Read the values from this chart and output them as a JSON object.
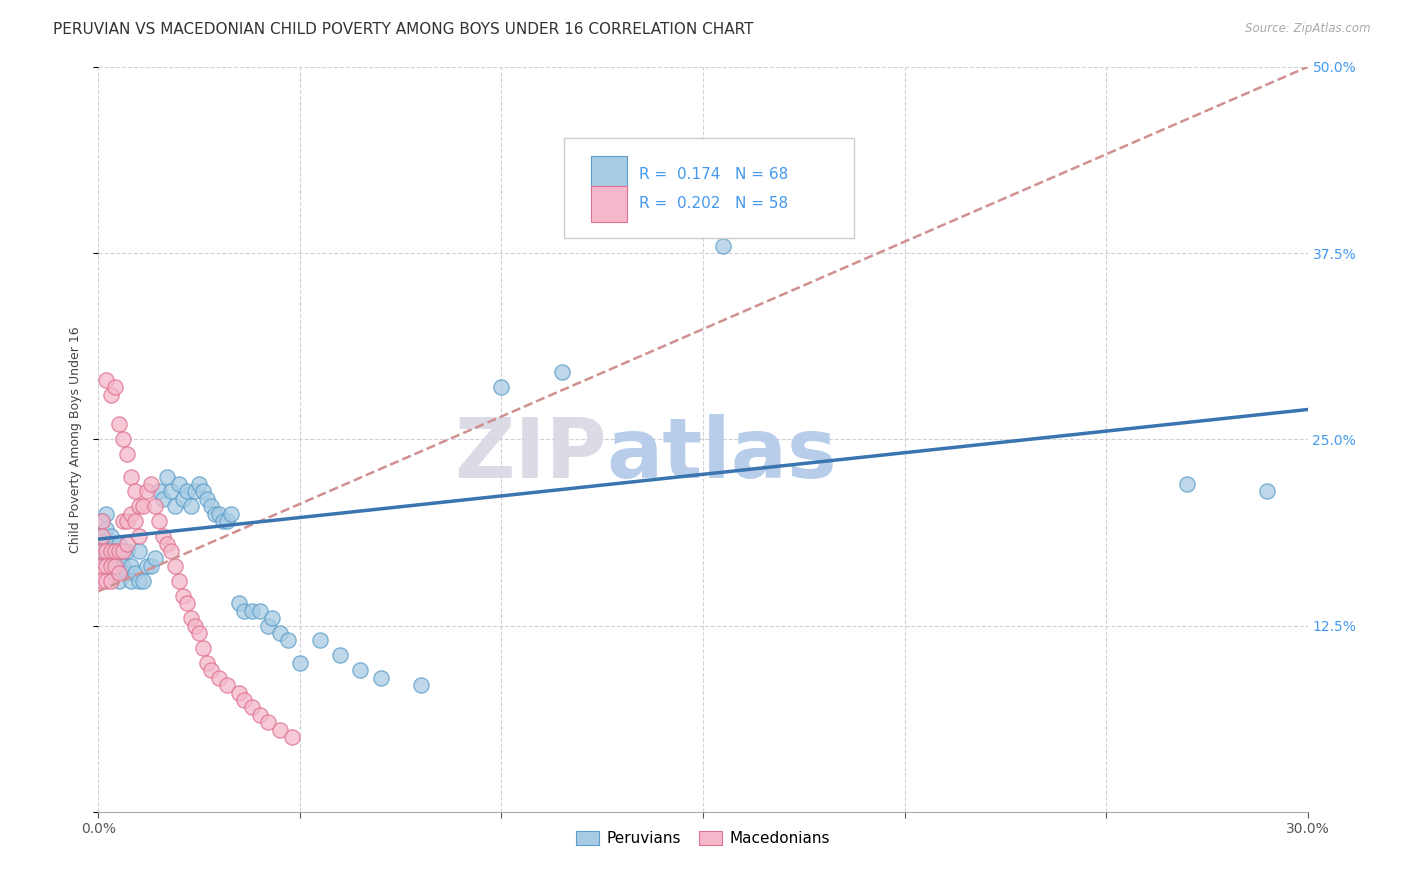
{
  "title": "PERUVIAN VS MACEDONIAN CHILD POVERTY AMONG BOYS UNDER 16 CORRELATION CHART",
  "source": "Source: ZipAtlas.com",
  "ylabel": "Child Poverty Among Boys Under 16",
  "legend_peruvian": "Peruvians",
  "legend_macedonian": "Macedonians",
  "R_peru": "0.174",
  "N_peru": "68",
  "R_mace": "0.202",
  "N_mace": "58",
  "peru_color": "#a8cce4",
  "peru_edge_color": "#5b9ec9",
  "mace_color": "#f4b8ca",
  "mace_edge_color": "#e07090",
  "peru_line_color": "#3a75b0",
  "mace_line_color": "#d09090",
  "watermark_zip": "ZIP",
  "watermark_atlas": "atlas",
  "xlim": [
    0.0,
    0.3
  ],
  "ylim": [
    0.0,
    0.5
  ],
  "xgrid_vals": [
    0.0,
    0.05,
    0.1,
    0.15,
    0.2,
    0.25,
    0.3
  ],
  "ygrid_vals": [
    0.0,
    0.125,
    0.25,
    0.375,
    0.5
  ],
  "background_color": "#ffffff",
  "title_fontsize": 11,
  "axis_label_fontsize": 9,
  "tick_fontsize": 10,
  "peru_scatter_x": [
    0.001,
    0.001,
    0.001,
    0.002,
    0.002,
    0.002,
    0.002,
    0.003,
    0.003,
    0.003,
    0.004,
    0.004,
    0.004,
    0.005,
    0.005,
    0.005,
    0.006,
    0.006,
    0.007,
    0.007,
    0.008,
    0.008,
    0.009,
    0.01,
    0.01,
    0.011,
    0.012,
    0.013,
    0.014,
    0.015,
    0.016,
    0.017,
    0.018,
    0.019,
    0.02,
    0.021,
    0.022,
    0.023,
    0.024,
    0.025,
    0.026,
    0.027,
    0.028,
    0.029,
    0.03,
    0.031,
    0.032,
    0.033,
    0.035,
    0.036,
    0.038,
    0.04,
    0.042,
    0.043,
    0.045,
    0.047,
    0.05,
    0.055,
    0.06,
    0.065,
    0.07,
    0.08,
    0.1,
    0.115,
    0.14,
    0.155,
    0.27,
    0.29
  ],
  "peru_scatter_y": [
    0.185,
    0.195,
    0.175,
    0.19,
    0.18,
    0.17,
    0.2,
    0.185,
    0.175,
    0.165,
    0.18,
    0.17,
    0.16,
    0.18,
    0.165,
    0.155,
    0.175,
    0.165,
    0.175,
    0.16,
    0.165,
    0.155,
    0.16,
    0.175,
    0.155,
    0.155,
    0.165,
    0.165,
    0.17,
    0.215,
    0.21,
    0.225,
    0.215,
    0.205,
    0.22,
    0.21,
    0.215,
    0.205,
    0.215,
    0.22,
    0.215,
    0.21,
    0.205,
    0.2,
    0.2,
    0.195,
    0.195,
    0.2,
    0.14,
    0.135,
    0.135,
    0.135,
    0.125,
    0.13,
    0.12,
    0.115,
    0.1,
    0.115,
    0.105,
    0.095,
    0.09,
    0.085,
    0.285,
    0.295,
    0.425,
    0.38,
    0.22,
    0.215
  ],
  "mace_scatter_x": [
    0.001,
    0.001,
    0.001,
    0.001,
    0.001,
    0.002,
    0.002,
    0.002,
    0.002,
    0.003,
    0.003,
    0.003,
    0.003,
    0.004,
    0.004,
    0.004,
    0.005,
    0.005,
    0.005,
    0.006,
    0.006,
    0.006,
    0.007,
    0.007,
    0.007,
    0.008,
    0.008,
    0.009,
    0.009,
    0.01,
    0.01,
    0.011,
    0.012,
    0.013,
    0.014,
    0.015,
    0.016,
    0.017,
    0.018,
    0.019,
    0.02,
    0.021,
    0.022,
    0.023,
    0.024,
    0.025,
    0.026,
    0.027,
    0.028,
    0.03,
    0.032,
    0.035,
    0.036,
    0.038,
    0.04,
    0.042,
    0.045,
    0.048
  ],
  "mace_scatter_y": [
    0.195,
    0.185,
    0.175,
    0.165,
    0.155,
    0.29,
    0.175,
    0.165,
    0.155,
    0.28,
    0.175,
    0.165,
    0.155,
    0.285,
    0.175,
    0.165,
    0.26,
    0.175,
    0.16,
    0.25,
    0.195,
    0.175,
    0.24,
    0.195,
    0.18,
    0.225,
    0.2,
    0.215,
    0.195,
    0.205,
    0.185,
    0.205,
    0.215,
    0.22,
    0.205,
    0.195,
    0.185,
    0.18,
    0.175,
    0.165,
    0.155,
    0.145,
    0.14,
    0.13,
    0.125,
    0.12,
    0.11,
    0.1,
    0.095,
    0.09,
    0.085,
    0.08,
    0.075,
    0.07,
    0.065,
    0.06,
    0.055,
    0.05
  ]
}
